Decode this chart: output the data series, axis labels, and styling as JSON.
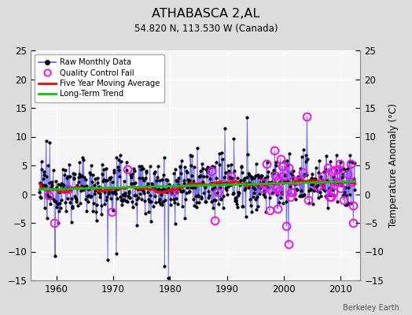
{
  "title": "ATHABASCA 2,AL",
  "subtitle": "54.820 N, 113.530 W (Canada)",
  "ylabel": "Temperature Anomaly (°C)",
  "attribution": "Berkeley Earth",
  "xlim": [
    1955.5,
    2013.5
  ],
  "ylim": [
    -15,
    25
  ],
  "yticks": [
    -15,
    -10,
    -5,
    0,
    5,
    10,
    15,
    20,
    25
  ],
  "xticks": [
    1960,
    1970,
    1980,
    1990,
    2000,
    2010
  ],
  "background_color": "#dcdcdc",
  "plot_bg_color": "#f5f5f5",
  "raw_line_color": "#5555ff",
  "raw_dot_color": "#000000",
  "qc_color": "#ff00ff",
  "moving_avg_color": "#ff0000",
  "trend_color": "#00cc00",
  "seed": 12345,
  "start_year": 1957.0,
  "end_year": 2012.5,
  "n_months": 666
}
